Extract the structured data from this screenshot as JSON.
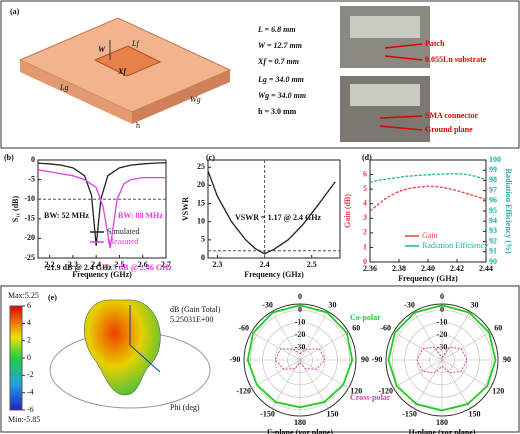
{
  "panel_a": {
    "label": "(a)",
    "dims": [
      "L = 6.8 mm",
      "W = 12.7 mm",
      "Xf = 0.7 mm",
      "Lg = 34.0 mm",
      "Wg = 34.0 mm",
      "h = 3.0 mm"
    ],
    "diagram_labels": [
      "W",
      "Lf",
      "Xf",
      "Lg",
      "Wg",
      "h"
    ],
    "photo_labels": [
      "Patch",
      "0.055Ln substrate",
      "SMA connector",
      "Ground plane"
    ]
  },
  "panel_e": {
    "label": "(e)",
    "max_label": "Max:5.25",
    "min_label": "Min:-5.85",
    "colorbar_ticks": [
      6,
      4,
      2,
      0,
      -2,
      -4,
      -6
    ],
    "pattern_texts": [
      "dB (Gain Total)",
      "5.25031E+00",
      "Phi (deg)"
    ]
  },
  "chart_data": [
    {
      "type": "line",
      "label": "(b)",
      "xlabel": "Frequency (GHz)",
      "ylabel": "S₁₁ (dB)",
      "xlim": [
        2.15,
        2.7
      ],
      "ylim": [
        -25,
        0
      ],
      "xticks": [
        2.2,
        2.3,
        2.4,
        2.5,
        2.6,
        2.7
      ],
      "yticks": [
        0,
        -5,
        -10,
        -15,
        -20,
        -25
      ],
      "hlines": [
        -10
      ],
      "series": [
        {
          "name": "Simulated",
          "color": "#222222",
          "x": [
            2.15,
            2.2,
            2.25,
            2.3,
            2.35,
            2.38,
            2.4,
            2.42,
            2.45,
            2.5,
            2.55,
            2.6,
            2.65,
            2.7
          ],
          "values": [
            -0.8,
            -1,
            -1.3,
            -2,
            -4,
            -9,
            -21.9,
            -10,
            -4,
            -2,
            -1.3,
            -1,
            -0.8,
            -0.7
          ]
        },
        {
          "name": "Measured",
          "color": "#e040e0",
          "x": [
            2.15,
            2.2,
            2.25,
            2.3,
            2.35,
            2.4,
            2.43,
            2.46,
            2.49,
            2.52,
            2.55,
            2.6,
            2.65,
            2.7
          ],
          "values": [
            -2.5,
            -3,
            -3.5,
            -4,
            -5,
            -7,
            -12,
            -22.5,
            -10,
            -6,
            -5,
            -4.5,
            -4.5,
            -4.5
          ]
        }
      ],
      "annotations": [
        "BW: 52 MHz",
        "BW: 88 MHz",
        "-21.9 dB @ 2.4 GHz",
        "-22.5 dB @ 2.46 GHz"
      ]
    },
    {
      "type": "line",
      "label": "(c)",
      "xlabel": "Frequency (GHz)",
      "ylabel": "VSWR",
      "xlim": [
        2.28,
        2.56
      ],
      "ylim": [
        0,
        27
      ],
      "xticks": [
        2.3,
        2.4,
        2.5
      ],
      "yticks": [
        0,
        5,
        10,
        15,
        20,
        25
      ],
      "hlines": [
        2
      ],
      "vlines": [
        2.4
      ],
      "series": [
        {
          "name": "VSWR",
          "color": "#222222",
          "x": [
            2.28,
            2.3,
            2.33,
            2.36,
            2.38,
            2.4,
            2.42,
            2.45,
            2.48,
            2.51,
            2.55
          ],
          "values": [
            24,
            17,
            10,
            5,
            2.6,
            1.17,
            2.4,
            5,
            9,
            14,
            21
          ]
        }
      ],
      "annotations": [
        "VSWR = 1.17 @ 2.4 GHz"
      ]
    },
    {
      "type": "line",
      "label": "(d)",
      "xlabel": "Frequency (GHz)",
      "ylabel": "Gain (dB)",
      "y2label": "Radiation Efficiency (%)",
      "xlim": [
        2.36,
        2.44
      ],
      "ylim": [
        0,
        7
      ],
      "y2lim": [
        90,
        100
      ],
      "xticks": [
        2.36,
        {
          "value": 2.38,
          "label": "2.38"
        },
        {
          "value": 2.4,
          "label": "2.40"
        },
        {
          "value": 2.42,
          "label": "2.42"
        },
        2.44
      ],
      "yticks": [
        0,
        1,
        2,
        3,
        4,
        5,
        6
      ],
      "y2ticks": [
        90,
        91,
        92,
        93,
        94,
        95,
        96,
        97,
        98,
        99,
        100
      ],
      "series": [
        {
          "name": "Gain",
          "color": "#e84040",
          "x": [
            2.36,
            2.365,
            2.37,
            2.375,
            2.38,
            2.385,
            2.39,
            2.395,
            2.4,
            2.405,
            2.41,
            2.415,
            2.42,
            2.425,
            2.43,
            2.435,
            2.44
          ],
          "values": [
            3.5,
            3.9,
            4.3,
            4.6,
            4.85,
            5.0,
            5.1,
            5.15,
            5.2,
            5.18,
            5.12,
            5.02,
            4.9,
            4.75,
            4.6,
            4.45,
            4.3
          ]
        },
        {
          "name": "Radiation Efficiency",
          "color": "#20b0a0",
          "axis": "y2",
          "x": [
            2.36,
            2.365,
            2.37,
            2.375,
            2.38,
            2.385,
            2.39,
            2.395,
            2.4,
            2.405,
            2.41,
            2.415,
            2.42,
            2.425,
            2.43,
            2.435,
            2.44
          ],
          "values": [
            97.8,
            98.0,
            98.1,
            98.2,
            98.3,
            98.4,
            98.45,
            98.5,
            98.55,
            98.6,
            98.62,
            98.65,
            98.65,
            98.6,
            98.5,
            98.3,
            98.1
          ]
        }
      ]
    },
    {
      "type": "polar",
      "caption": "E-plane (yoz plane)",
      "rlim": [
        -40,
        5
      ],
      "rticks": [
        0,
        -10,
        -20,
        -30
      ],
      "theta": [
        0,
        30,
        60,
        90,
        120,
        150,
        180,
        210,
        240,
        270,
        300,
        330
      ],
      "thetaticks": [
        0,
        30,
        60,
        90,
        120,
        150,
        180,
        {
          "value": 210,
          "label": "-150"
        },
        {
          "value": 240,
          "label": "-120"
        },
        {
          "value": 270,
          "label": "-90"
        },
        {
          "value": 300,
          "label": "-60"
        },
        {
          "value": 330,
          "label": "-30"
        }
      ],
      "series": [
        {
          "name": "Co-polar",
          "color": "#22cc22",
          "values": [
            4,
            4,
            3.5,
            2,
            0,
            -1,
            -2,
            -1,
            0,
            2,
            3.5,
            4
          ]
        },
        {
          "name": "Cross-polar",
          "color": "#e040a0",
          "values": [
            -35,
            -30,
            -22,
            -20,
            -25,
            -32,
            -38,
            -32,
            -25,
            -20,
            -22,
            -30
          ]
        }
      ]
    },
    {
      "type": "polar",
      "caption": "H-plane (xoz plane)",
      "rlim": [
        -40,
        5
      ],
      "rticks": [
        0,
        -10,
        -20,
        -30
      ],
      "theta": [
        0,
        30,
        60,
        90,
        120,
        150,
        180,
        210,
        240,
        270,
        300,
        330
      ],
      "thetaticks": [
        0,
        30,
        60,
        90,
        120,
        150,
        180,
        {
          "value": 210,
          "label": "-150"
        },
        {
          "value": 240,
          "label": "-120"
        },
        {
          "value": 270,
          "label": "-90"
        },
        {
          "value": 300,
          "label": "-60"
        },
        {
          "value": 330,
          "label": "-30"
        }
      ],
      "series": [
        {
          "name": "Co-polar",
          "color": "#22cc22",
          "values": [
            4,
            4,
            3.8,
            3,
            2,
            1,
            0.5,
            1,
            2,
            3,
            3.8,
            4
          ]
        },
        {
          "name": "Cross-polar",
          "color": "#e040a0",
          "values": [
            -38,
            -28,
            -22,
            -20,
            -22,
            -28,
            -35,
            -28,
            -22,
            -20,
            -22,
            -28
          ]
        }
      ]
    }
  ]
}
